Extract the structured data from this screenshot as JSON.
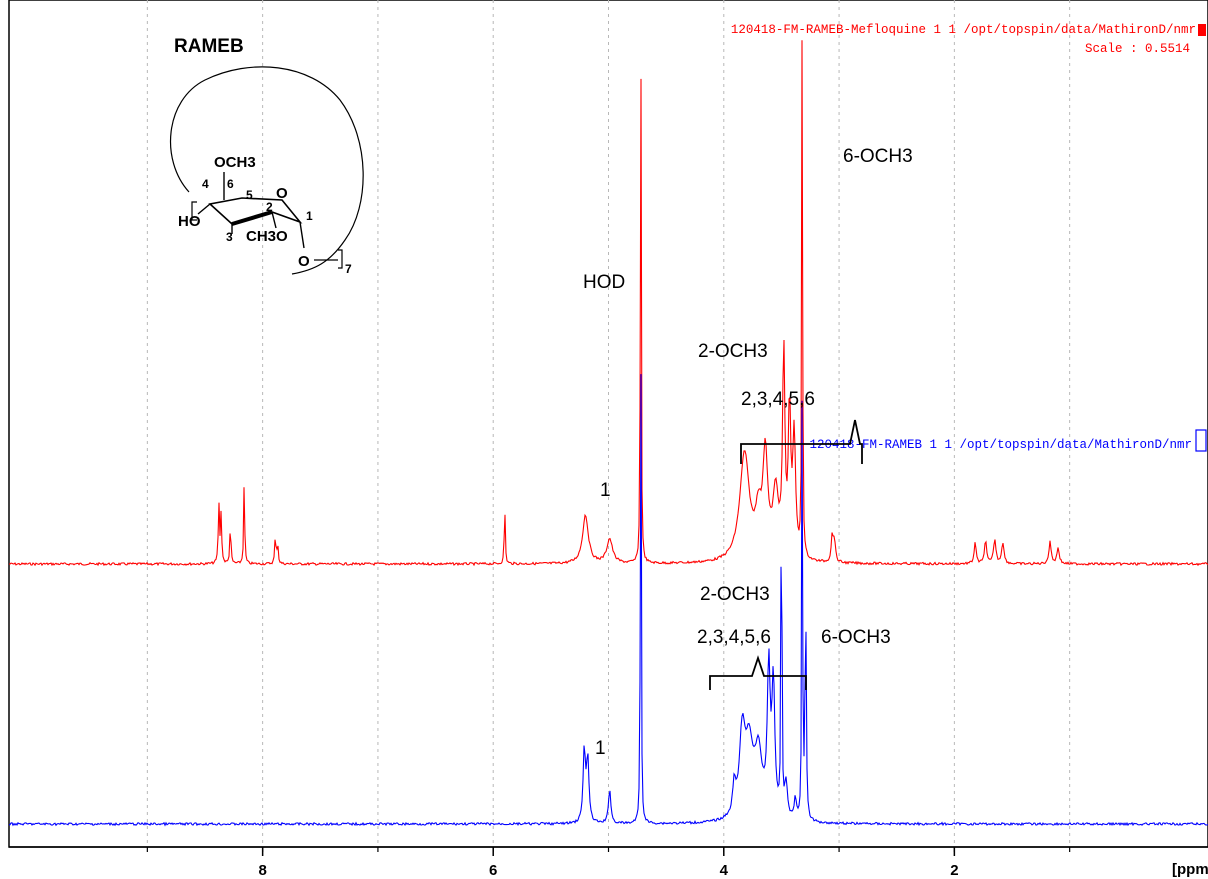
{
  "chart_data": {
    "type": "line",
    "title": "",
    "xlabel": "[ppm",
    "ylabel": "",
    "xlim": [
      10.2,
      -0.2
    ],
    "x_reversed": true,
    "grid": "vertical dashed",
    "xticks": [
      {
        "value": 8,
        "label": "8"
      },
      {
        "value": 6,
        "label": "6"
      },
      {
        "value": 4,
        "label": "4"
      },
      {
        "value": 2,
        "label": "2"
      }
    ],
    "series": [
      {
        "name": "120418-FM-RAMEB-Mefloquine  1  1  /opt/topspin/data/MathironD/nmr",
        "color": "#ff0000",
        "baseline_intensity": 0,
        "peaks": [
          {
            "x": 8.38,
            "height": 0.22,
            "w": 0.006
          },
          {
            "x": 8.36,
            "height": 0.18,
            "w": 0.006
          },
          {
            "x": 8.28,
            "height": 0.14,
            "w": 0.006
          },
          {
            "x": 8.16,
            "height": 0.31,
            "w": 0.005
          },
          {
            "x": 7.89,
            "height": 0.1,
            "w": 0.006
          },
          {
            "x": 7.87,
            "height": 0.08,
            "w": 0.006
          },
          {
            "x": 5.9,
            "height": 0.22,
            "w": 0.005
          },
          {
            "x": 5.2,
            "height": 0.18,
            "w": 0.03
          },
          {
            "x": 4.99,
            "height": 0.09,
            "w": 0.03
          },
          {
            "x": 4.72,
            "height": 2.2,
            "w": 0.004
          },
          {
            "x": 3.82,
            "height": 0.4,
            "w": 0.05
          },
          {
            "x": 3.7,
            "height": 0.15,
            "w": 0.03
          },
          {
            "x": 3.64,
            "height": 0.38,
            "w": 0.025
          },
          {
            "x": 3.55,
            "height": 0.24,
            "w": 0.03
          },
          {
            "x": 3.48,
            "height": 0.75,
            "w": 0.012
          },
          {
            "x": 3.43,
            "height": 0.55,
            "w": 0.012
          },
          {
            "x": 3.39,
            "height": 0.45,
            "w": 0.015
          },
          {
            "x": 3.32,
            "height": 2.2,
            "w": 0.004
          },
          {
            "x": 3.06,
            "height": 0.1,
            "w": 0.01
          },
          {
            "x": 3.04,
            "height": 0.08,
            "w": 0.01
          },
          {
            "x": 1.82,
            "height": 0.08,
            "w": 0.01
          },
          {
            "x": 1.73,
            "height": 0.09,
            "w": 0.01
          },
          {
            "x": 1.65,
            "height": 0.09,
            "w": 0.012
          },
          {
            "x": 1.58,
            "height": 0.08,
            "w": 0.012
          },
          {
            "x": 1.17,
            "height": 0.08,
            "w": 0.012
          },
          {
            "x": 1.1,
            "height": 0.06,
            "w": 0.012
          }
        ]
      },
      {
        "name": "120418-FM-RAMEB  1  1  /opt/topspin/data/MathironD/nmr",
        "color": "#0000ff",
        "baseline_intensity": 0,
        "peaks": [
          {
            "x": 5.21,
            "height": 0.25,
            "w": 0.012
          },
          {
            "x": 5.18,
            "height": 0.22,
            "w": 0.012
          },
          {
            "x": 4.99,
            "height": 0.12,
            "w": 0.012
          },
          {
            "x": 4.72,
            "height": 1.9,
            "w": 0.004
          },
          {
            "x": 3.91,
            "height": 0.1,
            "w": 0.015
          },
          {
            "x": 3.84,
            "height": 0.28,
            "w": 0.03
          },
          {
            "x": 3.78,
            "height": 0.24,
            "w": 0.04
          },
          {
            "x": 3.7,
            "height": 0.22,
            "w": 0.04
          },
          {
            "x": 3.61,
            "height": 0.5,
            "w": 0.015
          },
          {
            "x": 3.57,
            "height": 0.45,
            "w": 0.015
          },
          {
            "x": 3.5,
            "height": 1.55,
            "w": 0.004
          },
          {
            "x": 3.46,
            "height": 0.12,
            "w": 0.015
          },
          {
            "x": 3.38,
            "height": 0.07,
            "w": 0.012
          },
          {
            "x": 3.32,
            "height": 1.65,
            "w": 0.004
          },
          {
            "x": 3.29,
            "height": 0.8,
            "w": 0.006
          }
        ]
      }
    ],
    "annotations": {
      "top_spectrum": [
        "HOD",
        "2-OCH3",
        "2,3,4,5,6",
        "6-OCH3",
        "1"
      ],
      "bottom_spectrum": [
        "2-OCH3",
        "2,3,4,5,6",
        "6-OCH3",
        "1"
      ],
      "scale": "Scale : 0.5514"
    },
    "structure": {
      "label": "RAMEB",
      "texts": [
        "OCH3",
        "4",
        "6",
        "5",
        "O",
        "2",
        "1",
        "HO",
        "3",
        "CH3O",
        "O",
        "7"
      ]
    }
  }
}
